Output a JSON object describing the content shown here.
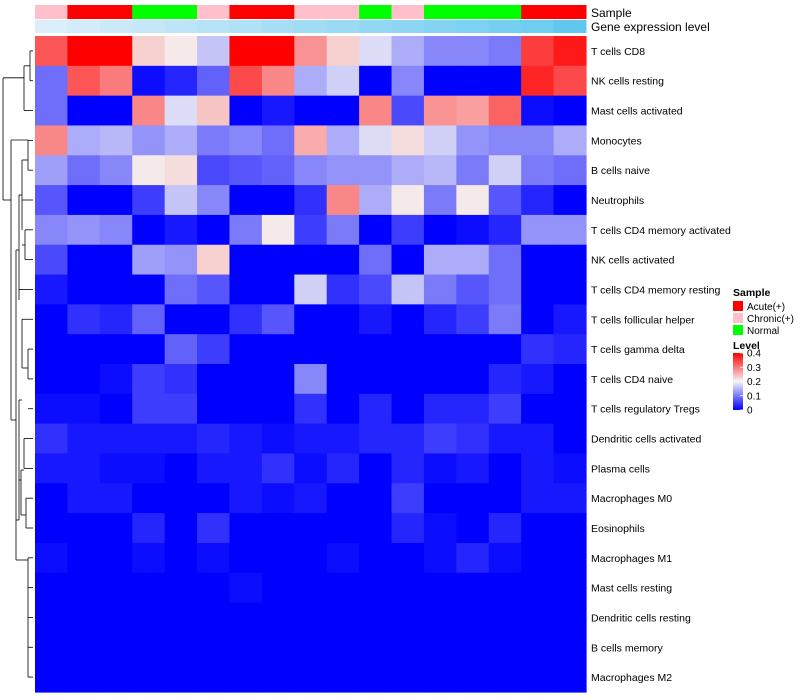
{
  "chart_data": {
    "type": "heatmap",
    "annotations": {
      "sample_label": "Sample",
      "expression_label": "Gene expression level",
      "sample_values": [
        "Chronic(+)",
        "Acute(+)",
        "Acute(+)",
        "Normal",
        "Normal",
        "Chronic(+)",
        "Acute(+)",
        "Acute(+)",
        "Chronic(+)",
        "Chronic(+)",
        "Normal",
        "Chronic(+)",
        "Normal",
        "Normal",
        "Normal",
        "Acute(+)",
        "Acute(+)"
      ],
      "expression_values": [
        0.05,
        0.1,
        0.15,
        0.2,
        0.25,
        0.3,
        0.35,
        0.4,
        0.45,
        0.5,
        0.55,
        0.6,
        0.65,
        0.7,
        0.75,
        0.8,
        0.9
      ]
    },
    "rows": [
      {
        "name": "T cells CD8",
        "values": [
          0.33,
          0.4,
          0.4,
          0.23,
          0.21,
          0.16,
          0.4,
          0.4,
          0.28,
          0.23,
          0.18,
          0.14,
          0.11,
          0.11,
          0.1,
          0.35,
          0.38
        ]
      },
      {
        "name": "NK cells resting",
        "values": [
          0.09,
          0.33,
          0.3,
          0.01,
          0.03,
          0.08,
          0.34,
          0.29,
          0.14,
          0.17,
          0.0,
          0.11,
          0.0,
          0.0,
          0.0,
          0.37,
          0.34
        ]
      },
      {
        "name": "Mast cells activated",
        "values": [
          0.09,
          0.0,
          0.0,
          0.29,
          0.18,
          0.24,
          0.0,
          0.02,
          0.0,
          0.0,
          0.29,
          0.06,
          0.28,
          0.27,
          0.32,
          0.01,
          0.0
        ]
      },
      {
        "name": "Monocytes",
        "values": [
          0.29,
          0.14,
          0.15,
          0.12,
          0.14,
          0.1,
          0.11,
          0.09,
          0.26,
          0.14,
          0.18,
          0.22,
          0.17,
          0.12,
          0.11,
          0.11,
          0.14
        ]
      },
      {
        "name": "B cells naive",
        "values": [
          0.13,
          0.09,
          0.11,
          0.21,
          0.22,
          0.06,
          0.07,
          0.08,
          0.11,
          0.12,
          0.12,
          0.14,
          0.15,
          0.1,
          0.17,
          0.1,
          0.09
        ]
      },
      {
        "name": "Neutrophils",
        "values": [
          0.07,
          0.0,
          0.0,
          0.05,
          0.16,
          0.11,
          0.0,
          0.0,
          0.04,
          0.29,
          0.14,
          0.21,
          0.1,
          0.21,
          0.07,
          0.03,
          0.0
        ]
      },
      {
        "name": "T cells CD4 memory activated",
        "values": [
          0.11,
          0.12,
          0.11,
          0.0,
          0.02,
          0.0,
          0.1,
          0.21,
          0.05,
          0.1,
          0.0,
          0.05,
          0.0,
          0.01,
          0.03,
          0.12,
          0.12
        ]
      },
      {
        "name": "NK cells activated",
        "values": [
          0.06,
          0.0,
          0.0,
          0.13,
          0.12,
          0.23,
          0.0,
          0.0,
          0.0,
          0.0,
          0.09,
          0.0,
          0.14,
          0.14,
          0.09,
          0.0,
          0.0
        ]
      },
      {
        "name": "T cells CD4 memory resting",
        "values": [
          0.02,
          0.0,
          0.0,
          0.0,
          0.09,
          0.07,
          0.0,
          0.0,
          0.17,
          0.04,
          0.06,
          0.16,
          0.1,
          0.07,
          0.09,
          0.0,
          0.0
        ]
      },
      {
        "name": "T cells follicular helper",
        "values": [
          0.0,
          0.04,
          0.03,
          0.08,
          0.0,
          0.0,
          0.04,
          0.07,
          0.0,
          0.0,
          0.02,
          0.0,
          0.03,
          0.05,
          0.1,
          0.0,
          0.02
        ]
      },
      {
        "name": "T cells gamma delta",
        "values": [
          0.0,
          0.0,
          0.0,
          0.0,
          0.08,
          0.05,
          0.0,
          0.0,
          0.0,
          0.0,
          0.0,
          0.0,
          0.0,
          0.0,
          0.0,
          0.04,
          0.03
        ]
      },
      {
        "name": "T cells CD4 naive",
        "values": [
          0.0,
          0.0,
          0.01,
          0.05,
          0.04,
          0.0,
          0.0,
          0.0,
          0.11,
          0.0,
          0.0,
          0.0,
          0.0,
          0.0,
          0.03,
          0.02,
          0.0
        ]
      },
      {
        "name": "T cells regulatory  Tregs",
        "values": [
          0.01,
          0.01,
          0.0,
          0.05,
          0.05,
          0.0,
          0.0,
          0.0,
          0.04,
          0.0,
          0.03,
          0.0,
          0.03,
          0.03,
          0.05,
          0.0,
          0.0
        ]
      },
      {
        "name": "Dendritic cells activated",
        "values": [
          0.04,
          0.02,
          0.02,
          0.02,
          0.02,
          0.03,
          0.02,
          0.01,
          0.02,
          0.02,
          0.03,
          0.03,
          0.05,
          0.04,
          0.02,
          0.02,
          0.0
        ]
      },
      {
        "name": "Plasma cells",
        "values": [
          0.02,
          0.02,
          0.01,
          0.01,
          0.0,
          0.02,
          0.02,
          0.04,
          0.01,
          0.03,
          0.0,
          0.03,
          0.01,
          0.02,
          0.0,
          0.02,
          0.01
        ]
      },
      {
        "name": "Macrophages M0",
        "values": [
          0.0,
          0.02,
          0.02,
          0.0,
          0.0,
          0.0,
          0.02,
          0.01,
          0.02,
          0.0,
          0.0,
          0.05,
          0.0,
          0.0,
          0.0,
          0.02,
          0.02
        ]
      },
      {
        "name": "Eosinophils",
        "values": [
          0.0,
          0.0,
          0.0,
          0.03,
          0.0,
          0.04,
          0.0,
          0.0,
          0.0,
          0.0,
          0.0,
          0.03,
          0.01,
          0.0,
          0.03,
          0.0,
          0.0
        ]
      },
      {
        "name": "Macrophages M1",
        "values": [
          0.01,
          0.0,
          0.0,
          0.01,
          0.0,
          0.01,
          0.0,
          0.0,
          0.0,
          0.01,
          0.0,
          0.0,
          0.01,
          0.03,
          0.01,
          0.0,
          0.0
        ]
      },
      {
        "name": "Mast cells resting",
        "values": [
          0.0,
          0.0,
          0.0,
          0.0,
          0.0,
          0.0,
          0.01,
          0.0,
          0.0,
          0.0,
          0.0,
          0.0,
          0.0,
          0.0,
          0.0,
          0.0,
          0.0
        ]
      },
      {
        "name": "Dendritic cells resting",
        "values": [
          0.0,
          0.0,
          0.0,
          0.0,
          0.0,
          0.0,
          0.0,
          0.0,
          0.0,
          0.0,
          0.0,
          0.0,
          0.0,
          0.0,
          0.0,
          0.0,
          0.0
        ]
      },
      {
        "name": "B cells memory",
        "values": [
          0.0,
          0.0,
          0.0,
          0.0,
          0.0,
          0.0,
          0.0,
          0.0,
          0.0,
          0.0,
          0.0,
          0.0,
          0.0,
          0.0,
          0.0,
          0.0,
          0.0
        ]
      },
      {
        "name": "Macrophages M2",
        "values": [
          0.0,
          0.0,
          0.0,
          0.0,
          0.0,
          0.0,
          0.0,
          0.0,
          0.0,
          0.0,
          0.0,
          0.0,
          0.0,
          0.0,
          0.0,
          0.0,
          0.0
        ]
      }
    ],
    "color_scale": {
      "min": 0,
      "max": 0.4,
      "colors": [
        "#0000ff",
        "#f5f5f5",
        "#ff0000"
      ],
      "ticks": [
        0,
        0.1,
        0.2,
        0.3,
        0.4
      ]
    },
    "legend": {
      "sample_title": "Sample",
      "sample_entries": [
        {
          "label": "Acute(+)",
          "color": "#ff0000"
        },
        {
          "label": "Chronic(+)",
          "color": "#ffc0cb"
        },
        {
          "label": "Normal",
          "color": "#00ff00"
        }
      ],
      "level_title": "Level",
      "placement": "right"
    },
    "row_dendrogram": true
  }
}
